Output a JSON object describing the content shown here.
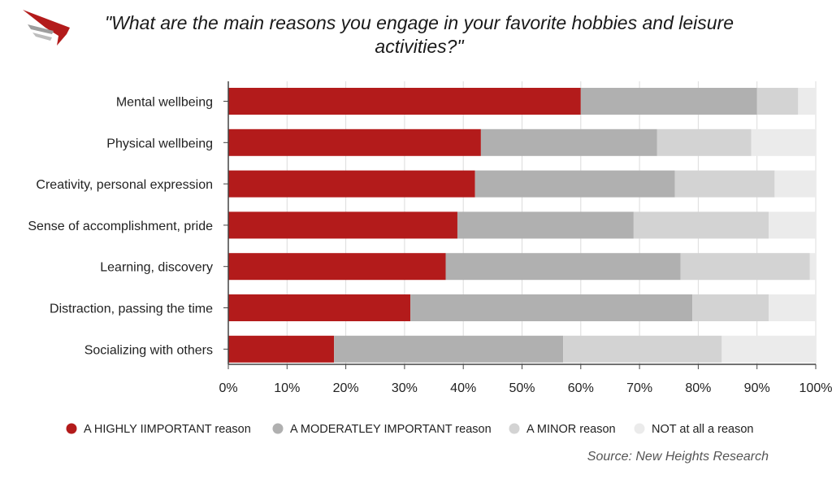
{
  "title": "\"What are the main reasons you engage in your favorite hobbies and leisure activities?\"",
  "source": "Source: New Heights Research",
  "logo": {
    "icon": "red-wing-logo-icon",
    "colors": [
      "#b31b1b",
      "#9e9e9e"
    ]
  },
  "chart_data": {
    "type": "bar",
    "orientation": "horizontal",
    "stacked": true,
    "categories": [
      "Mental wellbeing",
      "Physical wellbeing",
      "Creativity, personal expression",
      "Sense of accomplishment, pride",
      "Learning, discovery",
      "Distraction, passing the time",
      "Socializing with others"
    ],
    "series": [
      {
        "name": "A HIGHLY IIMPORTANT reason",
        "color": "#b31b1b",
        "values": [
          60,
          43,
          42,
          39,
          37,
          31,
          18
        ]
      },
      {
        "name": "A MODERATLEY IMPORTANT reason",
        "color": "#b0b0b0",
        "values": [
          30,
          30,
          34,
          30,
          40,
          48,
          39
        ]
      },
      {
        "name": "A MINOR reason",
        "color": "#d3d3d3",
        "values": [
          7,
          16,
          17,
          23,
          22,
          13,
          27
        ]
      },
      {
        "name": "NOT at all a reason",
        "color": "#ebebeb",
        "values": [
          3,
          11,
          7,
          8,
          1,
          8,
          16
        ]
      }
    ],
    "xlim": [
      0,
      100
    ],
    "xticks": [
      "0%",
      "10%",
      "20%",
      "30%",
      "40%",
      "50%",
      "60%",
      "70%",
      "80%",
      "90%",
      "100%"
    ],
    "grid": true,
    "legend_position": "bottom"
  }
}
